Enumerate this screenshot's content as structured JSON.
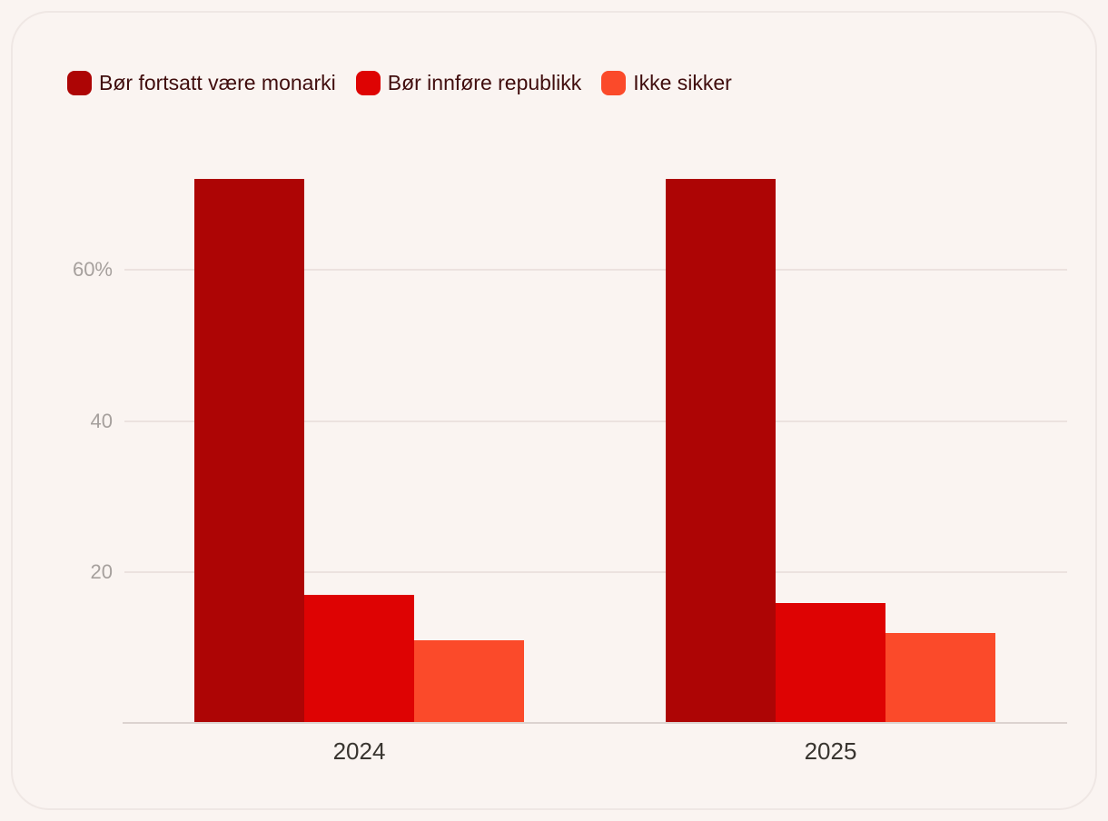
{
  "page": {
    "background_color": "#faf4f1",
    "card_border_color": "#efe7e4"
  },
  "legend": {
    "items": [
      {
        "label": "Bør fortsatt være monarki",
        "color": "#ad0505"
      },
      {
        "label": "Bør innføre republikk",
        "color": "#de0303"
      },
      {
        "label": "Ikke sikker",
        "color": "#fb4a2a"
      }
    ],
    "text_color": "#400d0d"
  },
  "chart_data": {
    "type": "bar",
    "title": "",
    "xlabel": "",
    "ylabel": "",
    "categories": [
      "2024",
      "2025"
    ],
    "series": [
      {
        "name": "Bør fortsatt være monarki",
        "color": "#ad0505",
        "values": [
          72,
          72
        ]
      },
      {
        "name": "Bør innføre republikk",
        "color": "#de0303",
        "values": [
          17,
          16
        ]
      },
      {
        "name": "Ikke sikker",
        "color": "#fb4a2a",
        "values": [
          11,
          12
        ]
      }
    ],
    "unit": "%",
    "y_ticks": [
      {
        "value": 20,
        "label": "20"
      },
      {
        "value": 40,
        "label": "40"
      },
      {
        "value": 60,
        "label": "60%"
      }
    ],
    "ylim": [
      0,
      75
    ],
    "grid": true,
    "legend_position": "top-left",
    "grid_color": "#ece2df",
    "axis_line_color": "#dcd3d0",
    "tick_label_color": "#a6a09d",
    "category_label_color": "#393530"
  }
}
